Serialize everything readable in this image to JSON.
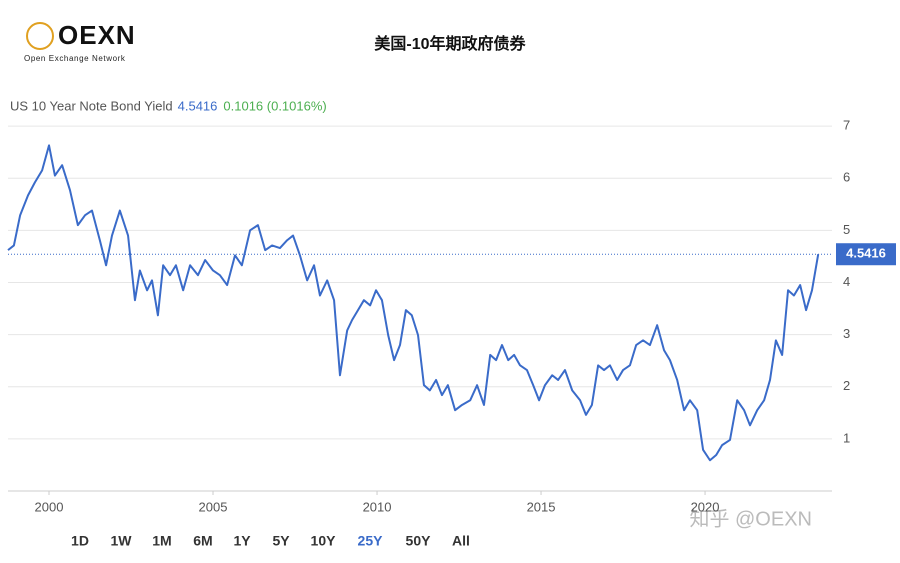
{
  "header": {
    "logo": "OEXN",
    "logo_tagline": "Open Exchange Network",
    "title": "美国-10年期政府债券"
  },
  "chart_data": {
    "type": "line",
    "last_value": 4.5416,
    "change_text": "0.1016 (0.1016%)",
    "xlim": [
      1998.75,
      2023.87
    ],
    "ylim": [
      0,
      7.5
    ],
    "xticks": [
      2000,
      2005,
      2010,
      2015,
      2020
    ],
    "yticks": [
      1,
      2,
      3,
      4,
      5,
      6,
      7
    ],
    "grid": true,
    "x": [
      1998.75,
      1998.93,
      1999.12,
      1999.36,
      1999.57,
      1999.79,
      2000.0,
      2000.18,
      2000.4,
      2000.64,
      2000.88,
      2001.1,
      2001.31,
      2001.55,
      2001.74,
      2001.92,
      2002.16,
      2002.41,
      2002.62,
      2002.77,
      2002.99,
      2003.14,
      2003.32,
      2003.48,
      2003.69,
      2003.87,
      2004.09,
      2004.3,
      2004.54,
      2004.76,
      2005.0,
      2005.21,
      2005.43,
      2005.67,
      2005.88,
      2006.13,
      2006.37,
      2006.59,
      2006.8,
      2007.04,
      2007.26,
      2007.44,
      2007.65,
      2007.87,
      2008.08,
      2008.26,
      2008.48,
      2008.69,
      2008.87,
      2009.09,
      2009.24,
      2009.42,
      2009.6,
      2009.79,
      2009.97,
      2010.15,
      2010.34,
      2010.52,
      2010.7,
      2010.88,
      2011.06,
      2011.25,
      2011.43,
      2011.61,
      2011.8,
      2011.98,
      2012.16,
      2012.38,
      2012.59,
      2012.84,
      2013.05,
      2013.26,
      2013.45,
      2013.63,
      2013.81,
      2014.0,
      2014.18,
      2014.36,
      2014.57,
      2014.76,
      2014.94,
      2015.12,
      2015.34,
      2015.52,
      2015.73,
      2015.95,
      2016.19,
      2016.37,
      2016.55,
      2016.74,
      2016.92,
      2017.1,
      2017.32,
      2017.5,
      2017.71,
      2017.9,
      2018.11,
      2018.32,
      2018.54,
      2018.75,
      2018.93,
      2019.15,
      2019.36,
      2019.54,
      2019.76,
      2019.94,
      2020.15,
      2020.34,
      2020.52,
      2020.76,
      2020.98,
      2021.19,
      2021.37,
      2021.59,
      2021.8,
      2021.98,
      2022.16,
      2022.35,
      2022.53,
      2022.71,
      2022.9,
      2023.08,
      2023.26,
      2023.45
    ],
    "series": [
      {
        "name": "US 10 Year Note Bond Yield",
        "color": "#3a6bc9",
        "values": [
          4.62,
          4.71,
          5.29,
          5.67,
          5.92,
          6.15,
          6.63,
          6.05,
          6.25,
          5.77,
          5.1,
          5.29,
          5.38,
          4.81,
          4.33,
          4.9,
          5.38,
          4.9,
          3.66,
          4.23,
          3.85,
          4.04,
          3.37,
          4.33,
          4.14,
          4.33,
          3.85,
          4.33,
          4.14,
          4.43,
          4.23,
          4.14,
          3.95,
          4.52,
          4.33,
          5.0,
          5.1,
          4.62,
          4.71,
          4.66,
          4.81,
          4.9,
          4.52,
          4.04,
          4.33,
          3.75,
          4.04,
          3.66,
          2.22,
          3.08,
          3.28,
          3.47,
          3.66,
          3.56,
          3.85,
          3.66,
          2.99,
          2.51,
          2.8,
          3.47,
          3.37,
          2.99,
          2.03,
          1.93,
          2.13,
          1.84,
          2.03,
          1.55,
          1.65,
          1.74,
          2.03,
          1.65,
          2.61,
          2.51,
          2.8,
          2.51,
          2.61,
          2.41,
          2.32,
          2.03,
          1.74,
          2.03,
          2.22,
          2.13,
          2.32,
          1.93,
          1.74,
          1.46,
          1.65,
          2.41,
          2.32,
          2.41,
          2.13,
          2.32,
          2.41,
          2.8,
          2.89,
          2.8,
          3.18,
          2.7,
          2.51,
          2.13,
          1.55,
          1.74,
          1.55,
          0.79,
          0.59,
          0.69,
          0.88,
          0.98,
          1.74,
          1.55,
          1.26,
          1.55,
          1.74,
          2.13,
          2.89,
          2.61,
          3.85,
          3.75,
          3.95,
          3.47,
          3.85,
          4.5416
        ]
      }
    ]
  },
  "range_buttons": [
    "1D",
    "1W",
    "1M",
    "6M",
    "1Y",
    "5Y",
    "10Y",
    "25Y",
    "50Y",
    "All"
  ],
  "active_range": "25Y",
  "watermark": "知乎 @OEXN"
}
